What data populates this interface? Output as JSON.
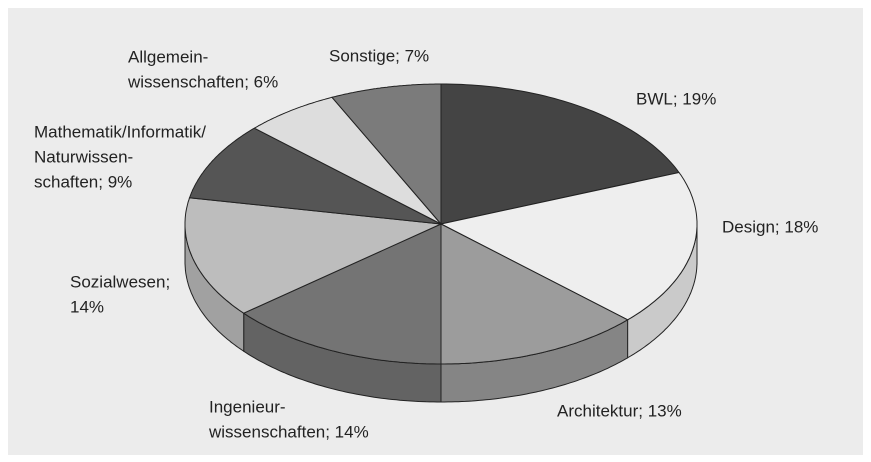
{
  "chart_data": {
    "type": "pie",
    "labels": [
      [
        "BWL; 19%"
      ],
      [
        "Design; 18%"
      ],
      [
        "Architektur; 13%"
      ],
      [
        "Ingenieur-",
        "wissenschaften; 14%"
      ],
      [
        "Sozialwesen;",
        "14%"
      ],
      [
        "Mathematik/Informatik/",
        "Naturwissen-",
        "schaften; 9%"
      ],
      [
        "Allgemein-",
        "wissenschaften; 6%"
      ],
      [
        "Sonstige; 7%"
      ]
    ],
    "values": [
      19,
      18,
      13,
      14,
      14,
      9,
      6,
      7
    ],
    "colors": [
      "#444444",
      "#eeeeee",
      "#9c9c9c",
      "#747474",
      "#bdbdbd",
      "#555555",
      "#dddddd",
      "#7b7b7b"
    ]
  }
}
